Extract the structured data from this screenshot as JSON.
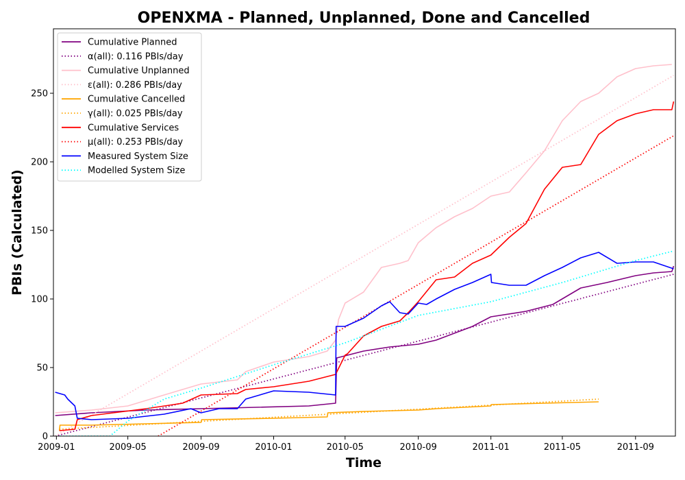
{
  "chart_data": {
    "type": "line",
    "title": "OPENXMA - Planned, Unplanned, Done  and Cancelled",
    "xlabel": "Time",
    "ylabel": "PBIs (Calculated)",
    "x_ticks": [
      "2009-01",
      "2009-05",
      "2009-09",
      "2010-01",
      "2010-05",
      "2010-09",
      "2011-01",
      "2011-05",
      "2011-09"
    ],
    "y_ticks": [
      "0",
      "50",
      "100",
      "150",
      "200",
      "250"
    ],
    "xlim": [
      "2008-12-27",
      "2011-11-07"
    ],
    "ylim": [
      0,
      297
    ],
    "grid": false,
    "legend_position": "top-left",
    "series": [
      {
        "name": "Cumulative Planned",
        "color": "#800080",
        "style": "solid",
        "x": [
          "2008-12-30",
          "2009-03-01",
          "2009-06-01",
          "2009-09-01",
          "2009-12-01",
          "2010-03-01",
          "2010-04-15",
          "2010-04-17",
          "2010-06-01",
          "2010-07-15",
          "2010-09-01",
          "2010-10-01",
          "2010-12-01",
          "2011-01-01",
          "2011-03-01",
          "2011-04-15",
          "2011-06-01",
          "2011-07-15",
          "2011-09-01",
          "2011-10-01",
          "2011-11-01",
          "2011-11-04"
        ],
        "y": [
          15,
          17,
          19,
          20,
          21,
          22,
          24,
          57,
          62,
          65,
          67,
          70,
          80,
          87,
          91,
          96,
          108,
          112,
          117,
          119,
          120,
          124
        ]
      },
      {
        "name": "α(all): 0.116 PBIs/day",
        "color": "#800080",
        "style": "dotted",
        "x": [
          "2008-12-30",
          "2011-11-04"
        ],
        "y": [
          0,
          118
        ]
      },
      {
        "name": "Cumulative Unplanned",
        "color": "#ffc0cb",
        "style": "solid",
        "x": [
          "2008-12-30",
          "2009-03-01",
          "2009-05-01",
          "2009-07-01",
          "2009-09-01",
          "2009-11-01",
          "2009-11-15",
          "2010-01-01",
          "2010-03-01",
          "2010-04-01",
          "2010-04-15",
          "2010-04-20",
          "2010-05-01",
          "2010-06-01",
          "2010-07-01",
          "2010-08-01",
          "2010-08-15",
          "2010-09-01",
          "2010-10-01",
          "2010-11-01",
          "2010-12-01",
          "2011-01-01",
          "2011-02-01",
          "2011-03-01",
          "2011-04-01",
          "2011-05-01",
          "2011-06-01",
          "2011-07-01",
          "2011-08-01",
          "2011-09-01",
          "2011-10-01",
          "2011-11-01"
        ],
        "y": [
          17,
          19,
          22,
          30,
          38,
          41,
          47,
          54,
          58,
          62,
          70,
          85,
          97,
          105,
          123,
          126,
          128,
          141,
          152,
          160,
          166,
          175,
          178,
          192,
          208,
          230,
          244,
          250,
          262,
          268,
          270,
          271
        ]
      },
      {
        "name": "ε(all): 0.286 PBIs/day",
        "color": "#ffc0cb",
        "style": "dotted",
        "x": [
          "2008-12-30",
          "2011-11-04"
        ],
        "y": [
          0,
          263
        ]
      },
      {
        "name": "Cumulative Cancelled",
        "color": "#ffa500",
        "style": "solid",
        "x": [
          "2009-01-06",
          "2009-01-07",
          "2009-03-01",
          "2009-06-01",
          "2009-09-01",
          "2009-09-02",
          "2010-01-01",
          "2010-04-01",
          "2010-04-02",
          "2010-06-01",
          "2010-09-01",
          "2010-10-01",
          "2011-01-01",
          "2011-01-02",
          "2011-04-01",
          "2011-07-01"
        ],
        "y": [
          4,
          8,
          8,
          9,
          10,
          12,
          13,
          14,
          17,
          18,
          19,
          20,
          22,
          23,
          24,
          25
        ]
      },
      {
        "name": "γ(all): 0.025 PBIs/day",
        "color": "#ffa500",
        "style": "dotted",
        "x": [
          "2009-01-06",
          "2011-07-01"
        ],
        "y": [
          5,
          27
        ]
      },
      {
        "name": "Cumulative Services",
        "color": "#ff0000",
        "style": "solid",
        "x": [
          "2009-01-06",
          "2009-02-01",
          "2009-02-05",
          "2009-03-01",
          "2009-06-01",
          "2009-08-01",
          "2009-09-01",
          "2009-11-01",
          "2009-11-15",
          "2010-01-01",
          "2010-03-01",
          "2010-04-15",
          "2010-05-01",
          "2010-05-05",
          "2010-06-01",
          "2010-07-01",
          "2010-08-01",
          "2010-08-15",
          "2010-09-01",
          "2010-10-01",
          "2010-11-01",
          "2010-12-01",
          "2011-01-01",
          "2011-02-01",
          "2011-03-01",
          "2011-04-01",
          "2011-05-01",
          "2011-06-01",
          "2011-07-01",
          "2011-08-01",
          "2011-09-01",
          "2011-10-01",
          "2011-11-01",
          "2011-11-04"
        ],
        "y": [
          4,
          5,
          12,
          15,
          20,
          24,
          30,
          31,
          34,
          36,
          40,
          45,
          59,
          60,
          73,
          80,
          84,
          90,
          98,
          114,
          116,
          126,
          132,
          145,
          155,
          180,
          196,
          198,
          220,
          230,
          235,
          238,
          238,
          244
        ]
      },
      {
        "name": "μ(all): 0.253 PBIs/day",
        "color": "#ff0000",
        "style": "dotted",
        "x": [
          "2009-06-21",
          "2011-11-04"
        ],
        "y": [
          0,
          219
        ]
      },
      {
        "name": "Measured System Size",
        "color": "#0000ff",
        "style": "solid",
        "x": [
          "2008-12-30",
          "2009-01-15",
          "2009-01-20",
          "2009-02-01",
          "2009-02-05",
          "2009-03-01",
          "2009-05-01",
          "2009-07-01",
          "2009-08-15",
          "2009-09-01",
          "2009-10-01",
          "2009-11-01",
          "2009-11-15",
          "2010-01-01",
          "2010-03-01",
          "2010-04-15",
          "2010-04-16",
          "2010-05-01",
          "2010-06-01",
          "2010-07-01",
          "2010-07-15",
          "2010-08-01",
          "2010-08-15",
          "2010-09-01",
          "2010-09-15",
          "2010-10-01",
          "2010-11-01",
          "2010-12-01",
          "2011-01-01",
          "2011-01-02",
          "2011-02-01",
          "2011-03-01",
          "2011-04-01",
          "2011-05-01",
          "2011-06-01",
          "2011-07-01",
          "2011-08-01",
          "2011-09-01",
          "2011-10-01",
          "2011-11-04"
        ],
        "y": [
          32,
          30,
          27,
          22,
          13,
          12,
          13,
          16,
          20,
          17,
          20,
          20,
          27,
          33,
          32,
          30,
          80,
          80,
          86,
          95,
          98,
          90,
          89,
          97,
          96,
          100,
          107,
          112,
          118,
          112,
          110,
          110,
          117,
          123,
          130,
          134,
          126,
          127,
          127,
          122
        ]
      },
      {
        "name": "Modelled System Size",
        "color": "#00ffff",
        "style": "dotted",
        "x": [
          "2009-01-07",
          "2009-04-01",
          "2009-05-01",
          "2009-07-01",
          "2009-09-01",
          "2010-01-01",
          "2010-05-01",
          "2010-09-01",
          "2011-01-01",
          "2011-05-01",
          "2011-09-01",
          "2011-11-04"
        ],
        "y": [
          0,
          0,
          11,
          27,
          35,
          52,
          68,
          88,
          98,
          112,
          128,
          135
        ]
      }
    ]
  }
}
